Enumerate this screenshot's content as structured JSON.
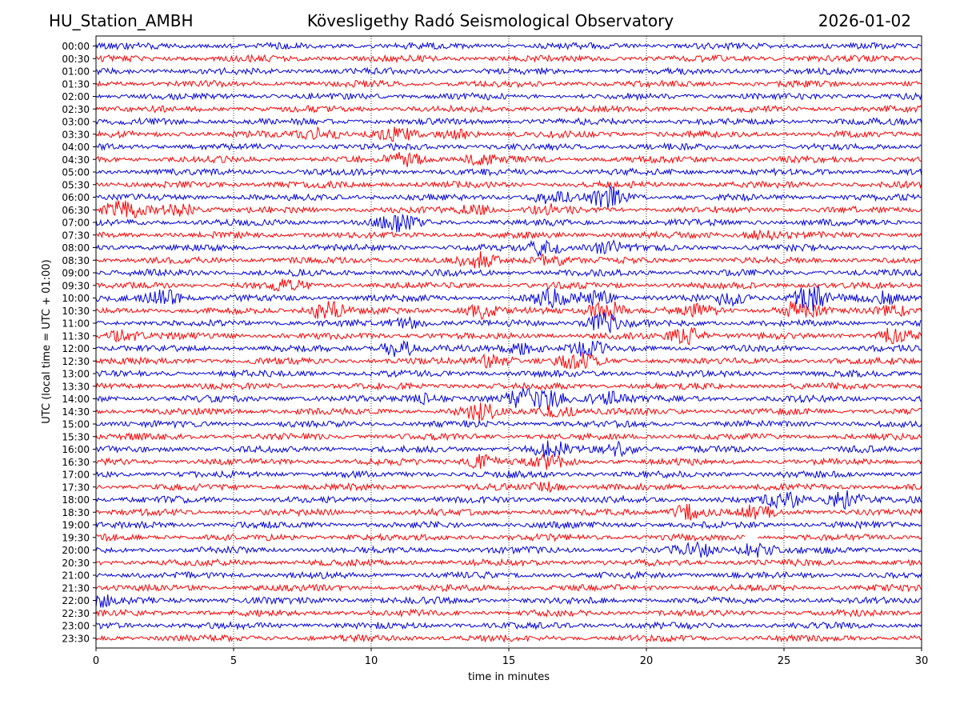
{
  "header": {
    "station": "HU_Station_AMBH",
    "observatory": "Kövesligethy Radó Seismological Observatory",
    "date": "2026-01-02"
  },
  "colors": {
    "even_row": "#0000dd",
    "odd_row": "#ff0000",
    "grid": "#000000"
  },
  "chart_data": {
    "type": "helicorder",
    "title": "Kövesligethy Radó Seismological Observatory",
    "xlabel": "time in minutes",
    "ylabel": "UTC (local time = UTC + 01:00)",
    "xlim": [
      0,
      30
    ],
    "x_ticks": [
      0,
      5,
      10,
      15,
      20,
      25,
      30
    ],
    "grid": "vertical dotted at x ticks",
    "row_labels": [
      "00:00",
      "00:30",
      "01:00",
      "01:30",
      "02:00",
      "02:30",
      "03:00",
      "03:30",
      "04:00",
      "04:30",
      "05:00",
      "05:30",
      "06:00",
      "06:30",
      "07:00",
      "07:30",
      "08:00",
      "08:30",
      "09:00",
      "09:30",
      "10:00",
      "10:30",
      "11:00",
      "11:30",
      "12:00",
      "12:30",
      "13:00",
      "13:30",
      "14:00",
      "14:30",
      "15:00",
      "15:30",
      "16:00",
      "16:30",
      "17:00",
      "17:30",
      "18:00",
      "18:30",
      "19:00",
      "19:30",
      "20:00",
      "20:30",
      "21:00",
      "21:30",
      "22:00",
      "22:30",
      "23:00",
      "23:30"
    ],
    "row_colors": "alternating blue / red",
    "bursts": [
      {
        "row": "03:30",
        "minute": 8.2,
        "amplitude": 0.9
      },
      {
        "row": "03:30",
        "minute": 10.8,
        "amplitude": 0.8
      },
      {
        "row": "03:30",
        "minute": 13.2,
        "amplitude": 0.5
      },
      {
        "row": "04:30",
        "minute": 11.3,
        "amplitude": 0.8
      },
      {
        "row": "04:30",
        "minute": 13.9,
        "amplitude": 0.5
      },
      {
        "row": "06:00",
        "minute": 16.5,
        "amplitude": 1.0
      },
      {
        "row": "06:00",
        "minute": 18.6,
        "amplitude": 1.2
      },
      {
        "row": "06:30",
        "minute": 1.0,
        "amplitude": 1.2
      },
      {
        "row": "06:30",
        "minute": 3.0,
        "amplitude": 0.7
      },
      {
        "row": "06:30",
        "minute": 13.8,
        "amplitude": 0.6
      },
      {
        "row": "06:30",
        "minute": 16.5,
        "amplitude": 0.5
      },
      {
        "row": "07:00",
        "minute": 11.0,
        "amplitude": 1.0
      },
      {
        "row": "07:30",
        "minute": 24.2,
        "amplitude": 0.5
      },
      {
        "row": "08:00",
        "minute": 16.3,
        "amplitude": 1.0
      },
      {
        "row": "08:00",
        "minute": 18.5,
        "amplitude": 0.8
      },
      {
        "row": "08:30",
        "minute": 13.8,
        "amplitude": 1.0
      },
      {
        "row": "08:30",
        "minute": 16.5,
        "amplitude": 0.7
      },
      {
        "row": "09:30",
        "minute": 7.0,
        "amplitude": 0.5
      },
      {
        "row": "10:00",
        "minute": 2.5,
        "amplitude": 1.0
      },
      {
        "row": "10:00",
        "minute": 16.5,
        "amplitude": 1.0
      },
      {
        "row": "10:00",
        "minute": 18.2,
        "amplitude": 0.9
      },
      {
        "row": "10:00",
        "minute": 23.0,
        "amplitude": 0.8
      },
      {
        "row": "10:00",
        "minute": 26.0,
        "amplitude": 1.6
      },
      {
        "row": "10:00",
        "minute": 28.8,
        "amplitude": 0.8
      },
      {
        "row": "10:30",
        "minute": 8.4,
        "amplitude": 1.2
      },
      {
        "row": "10:30",
        "minute": 14.0,
        "amplitude": 0.9
      },
      {
        "row": "10:30",
        "minute": 18.5,
        "amplitude": 1.4
      },
      {
        "row": "10:30",
        "minute": 22.0,
        "amplitude": 0.7
      },
      {
        "row": "10:30",
        "minute": 25.5,
        "amplitude": 1.1
      },
      {
        "row": "10:30",
        "minute": 29.0,
        "amplitude": 0.7
      },
      {
        "row": "11:00",
        "minute": 11.3,
        "amplitude": 0.6
      },
      {
        "row": "11:00",
        "minute": 18.5,
        "amplitude": 1.2
      },
      {
        "row": "11:30",
        "minute": 1.0,
        "amplitude": 0.7
      },
      {
        "row": "11:30",
        "minute": 21.5,
        "amplitude": 1.0
      },
      {
        "row": "11:30",
        "minute": 29.0,
        "amplitude": 0.9
      },
      {
        "row": "12:00",
        "minute": 11.0,
        "amplitude": 1.0
      },
      {
        "row": "12:00",
        "minute": 15.5,
        "amplitude": 0.9
      },
      {
        "row": "12:00",
        "minute": 17.8,
        "amplitude": 0.8
      },
      {
        "row": "12:30",
        "minute": 14.5,
        "amplitude": 0.9
      },
      {
        "row": "12:30",
        "minute": 17.5,
        "amplitude": 0.9
      },
      {
        "row": "14:00",
        "minute": 12.0,
        "amplitude": 0.6
      },
      {
        "row": "14:00",
        "minute": 15.5,
        "amplitude": 1.0
      },
      {
        "row": "14:00",
        "minute": 16.5,
        "amplitude": 1.1
      },
      {
        "row": "14:00",
        "minute": 18.5,
        "amplitude": 0.9
      },
      {
        "row": "14:30",
        "minute": 14.0,
        "amplitude": 1.0
      },
      {
        "row": "14:30",
        "minute": 16.8,
        "amplitude": 0.8
      },
      {
        "row": "16:00",
        "minute": 16.5,
        "amplitude": 0.9
      },
      {
        "row": "16:00",
        "minute": 19.0,
        "amplitude": 0.8
      },
      {
        "row": "16:30",
        "minute": 14.0,
        "amplitude": 0.9
      },
      {
        "row": "16:30",
        "minute": 16.5,
        "amplitude": 0.7
      },
      {
        "row": "17:30",
        "minute": 16.4,
        "amplitude": 0.6
      },
      {
        "row": "18:00",
        "minute": 25.0,
        "amplitude": 1.0
      },
      {
        "row": "18:00",
        "minute": 27.2,
        "amplitude": 1.1
      },
      {
        "row": "18:30",
        "minute": 21.5,
        "amplitude": 0.9
      },
      {
        "row": "18:30",
        "minute": 24.0,
        "amplitude": 0.7
      },
      {
        "row": "20:00",
        "minute": 21.8,
        "amplitude": 0.8
      },
      {
        "row": "20:00",
        "minute": 24.0,
        "amplitude": 1.0
      },
      {
        "row": "22:00",
        "minute": 0.1,
        "amplitude": 0.7
      }
    ],
    "gaps": [
      {
        "row": "19:30",
        "from_minute": 23.6,
        "to_minute": 24.0
      }
    ]
  }
}
